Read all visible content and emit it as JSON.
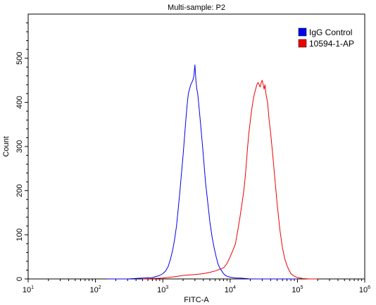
{
  "chart_data": {
    "type": "line",
    "title": "Multi-sample: P2",
    "xlabel": "FITC-A",
    "ylabel": "Count",
    "x_scale": "log",
    "xlim": [
      10,
      1000000
    ],
    "ylim": [
      0,
      600
    ],
    "x_ticks": [
      {
        "base": "10",
        "exp": "1",
        "value": 10
      },
      {
        "base": "10",
        "exp": "2",
        "value": 100
      },
      {
        "base": "10",
        "exp": "3",
        "value": 1000
      },
      {
        "base": "10",
        "exp": "4",
        "value": 10000
      },
      {
        "base": "10",
        "exp": "5",
        "value": 100000
      },
      {
        "base": "10",
        "exp": "6",
        "value": 1000000
      }
    ],
    "y_ticks": [
      0,
      100,
      200,
      300,
      400,
      500
    ],
    "legend_position": "top-right",
    "series": [
      {
        "name": "IgG Control",
        "color": "#0000ee",
        "x": [
          150,
          300,
          500,
          700,
          900,
          1000,
          1100,
          1200,
          1300,
          1400,
          1500,
          1600,
          1700,
          1800,
          1900,
          2000,
          2100,
          2200,
          2300,
          2400,
          2500,
          2600,
          2700,
          2800,
          2900,
          3000,
          3100,
          3200,
          3300,
          3400,
          3500,
          3700,
          3900,
          4100,
          4300,
          4600,
          5000,
          5400,
          5800,
          6200,
          6600,
          7000,
          7500,
          8000,
          8500,
          9000,
          9500,
          10000,
          11000,
          12000,
          14000,
          17000,
          20000,
          30000,
          50000,
          100000
        ],
        "y": [
          0,
          0,
          2,
          3,
          8,
          12,
          18,
          28,
          45,
          65,
          90,
          120,
          160,
          200,
          240,
          280,
          320,
          360,
          395,
          420,
          430,
          440,
          445,
          450,
          460,
          485,
          450,
          430,
          420,
          400,
          380,
          340,
          300,
          260,
          220,
          180,
          130,
          95,
          70,
          50,
          35,
          25,
          18,
          12,
          8,
          6,
          5,
          4,
          3,
          2,
          2,
          1,
          0,
          0,
          0,
          0
        ]
      },
      {
        "name": "10594-1-AP",
        "color": "#ee0000",
        "x": [
          500,
          1000,
          1500,
          2000,
          3000,
          4000,
          5000,
          6000,
          7000,
          8000,
          9000,
          10000,
          11000,
          12000,
          13000,
          14000,
          15000,
          16000,
          17000,
          18000,
          19000,
          20000,
          21000,
          22000,
          23000,
          24000,
          25000,
          26000,
          27000,
          28000,
          29000,
          30000,
          31000,
          32000,
          33000,
          34000,
          36000,
          38000,
          40000,
          43000,
          46000,
          50000,
          55000,
          60000,
          65000,
          70000,
          75000,
          80000,
          90000,
          100000,
          120000,
          150000,
          200000
        ],
        "y": [
          0,
          2,
          5,
          8,
          10,
          12,
          15,
          18,
          22,
          25,
          35,
          50,
          65,
          80,
          110,
          140,
          170,
          200,
          240,
          290,
          330,
          360,
          385,
          405,
          420,
          430,
          440,
          445,
          440,
          435,
          445,
          450,
          440,
          430,
          440,
          420,
          400,
          360,
          330,
          280,
          230,
          170,
          110,
          70,
          45,
          30,
          20,
          12,
          6,
          3,
          1,
          0,
          0
        ]
      }
    ]
  }
}
